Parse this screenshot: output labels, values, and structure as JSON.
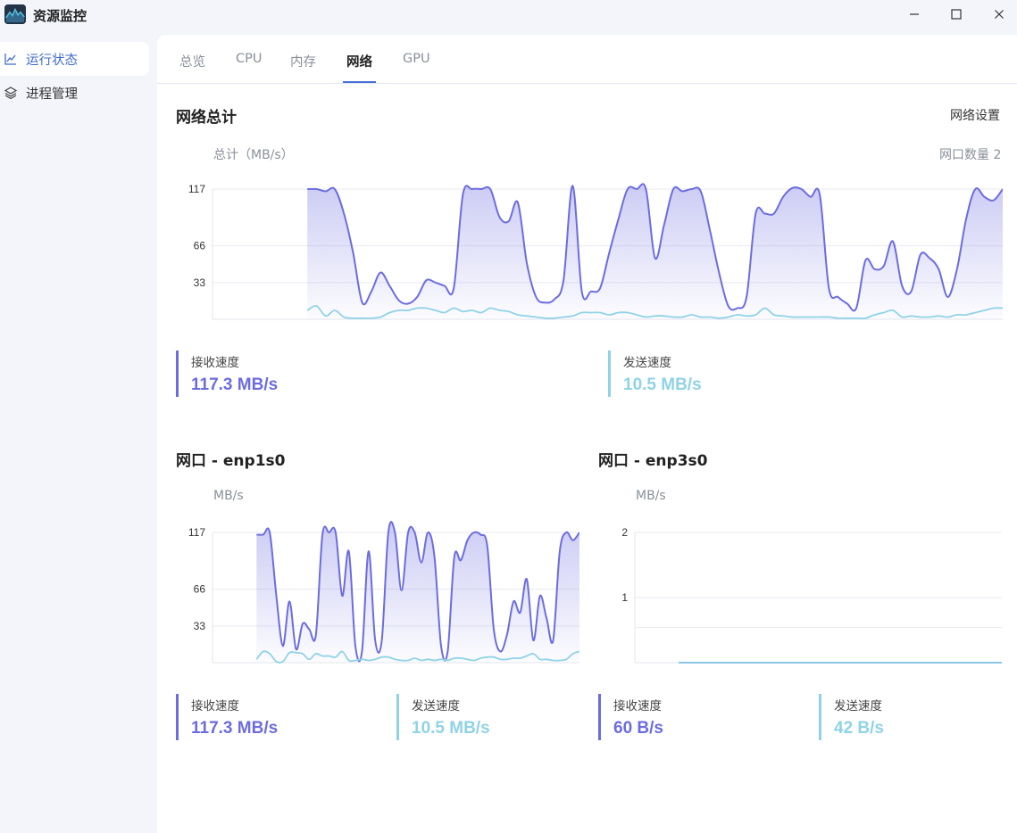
{
  "app": {
    "title": "资源监控"
  },
  "sidebar": {
    "items": [
      {
        "label": "运行状态",
        "icon": "chart-line-icon",
        "active": true
      },
      {
        "label": "进程管理",
        "icon": "layers-icon",
        "active": false
      }
    ]
  },
  "tabs": [
    {
      "label": "总览"
    },
    {
      "label": "CPU"
    },
    {
      "label": "内存"
    },
    {
      "label": "网络",
      "active": true
    },
    {
      "label": "GPU"
    }
  ],
  "colors": {
    "receive": "#6c6ce0",
    "send": "#8fd3e6",
    "accent": "#4a6fd6"
  },
  "total": {
    "title": "网络总计",
    "settings_label": "网络设置",
    "unit_label": "总计（MB/s）",
    "iface_count": "网口数量 2",
    "recv_label": "接收速度",
    "recv_value": "117.3 MB/s",
    "send_label": "发送速度",
    "send_value": "10.5 MB/s"
  },
  "ifaces": [
    {
      "title": "网口 - enp1s0",
      "unit_label": "MB/s",
      "recv_label": "接收速度",
      "recv_value": "117.3 MB/s",
      "send_label": "发送速度",
      "send_value": "10.5 MB/s"
    },
    {
      "title": "网口 - enp3s0",
      "unit_label": "MB/s",
      "recv_label": "接收速度",
      "recv_value": "60 B/s",
      "send_label": "发送速度",
      "send_value": "42 B/s"
    }
  ],
  "chart_data": [
    {
      "type": "area",
      "yticks": [
        "117",
        "66",
        "33"
      ],
      "ytick_values": [
        117,
        66,
        33
      ],
      "ylim": [
        0,
        117
      ],
      "grid": true,
      "series": [
        {
          "values": [
            117,
            117,
            115,
            117,
            95,
            60,
            15,
            25,
            42,
            30,
            17,
            14,
            20,
            35,
            33,
            30,
            28,
            112,
            117,
            117,
            117,
            92,
            88,
            105,
            50,
            20,
            15,
            18,
            35,
            120,
            25,
            25,
            28,
            60,
            90,
            117,
            117,
            117,
            55,
            85,
            117,
            115,
            117,
            115,
            80,
            42,
            12,
            10,
            20,
            95,
            95,
            95,
            110,
            118,
            117,
            110,
            112,
            28,
            20,
            14,
            10,
            53,
            45,
            48,
            70,
            30,
            25,
            58,
            55,
            45,
            20,
            45,
            90,
            117,
            110,
            107,
            117
          ]
        },
        {
          "values": [
            8,
            12,
            3,
            8,
            2,
            1,
            1,
            1,
            2,
            6,
            8,
            8,
            10,
            10,
            8,
            6,
            10,
            7,
            8,
            6,
            10,
            8,
            7,
            4,
            3,
            2,
            1,
            1,
            2,
            3,
            6,
            6,
            6,
            4,
            6,
            6,
            4,
            2,
            3,
            3,
            2,
            2,
            4,
            2,
            2,
            1,
            2,
            4,
            3,
            4,
            10,
            4,
            3,
            2,
            2,
            2,
            2,
            2,
            1,
            1,
            1,
            1,
            4,
            6,
            8,
            2,
            3,
            2,
            2,
            3,
            2,
            4,
            4,
            6,
            8,
            10,
            10
          ]
        }
      ]
    },
    {
      "type": "area",
      "yticks": [
        "117",
        "66",
        "33"
      ],
      "ytick_values": [
        117,
        66,
        33
      ],
      "ylim": [
        0,
        117
      ],
      "grid": true,
      "series": [
        {
          "values": [
            115,
            115,
            117,
            60,
            15,
            55,
            12,
            35,
            30,
            25,
            115,
            117,
            117,
            60,
            100,
            15,
            10,
            100,
            20,
            20,
            117,
            117,
            65,
            117,
            117,
            90,
            117,
            95,
            15,
            10,
            95,
            92,
            110,
            117,
            115,
            105,
            30,
            10,
            25,
            55,
            45,
            75,
            20,
            60,
            40,
            20,
            100,
            117,
            110,
            117
          ]
        },
        {
          "values": [
            3,
            10,
            8,
            1,
            1,
            9,
            9,
            8,
            3,
            8,
            6,
            6,
            5,
            10,
            2,
            2,
            3,
            2,
            3,
            5,
            5,
            3,
            2,
            2,
            4,
            2,
            3,
            2,
            3,
            2,
            4,
            4,
            3,
            2,
            4,
            5,
            5,
            3,
            3,
            4,
            4,
            6,
            8,
            3,
            3,
            2,
            2,
            3,
            8,
            10
          ]
        }
      ]
    },
    {
      "type": "area",
      "yticks": [
        "2",
        "1"
      ],
      "ytick_values": [
        2,
        1
      ],
      "ylim": [
        0,
        2
      ],
      "grid": true,
      "series": [
        {
          "values": [
            3e-05,
            6e-05,
            4e-05,
            5e-05,
            3e-05,
            6e-05,
            4e-05,
            5e-05,
            3e-05,
            5e-05,
            4e-05,
            6e-05,
            3e-05,
            5e-05,
            6e-05,
            4e-05,
            5e-05,
            3e-05,
            6e-05,
            4e-05,
            5e-05,
            3e-05,
            6e-05,
            4e-05,
            5e-05
          ]
        },
        {
          "values": [
            2e-05,
            4e-05,
            3e-05,
            4e-05,
            2e-05,
            4e-05,
            3e-05,
            4e-05,
            2e-05,
            4e-05,
            3e-05,
            4e-05,
            2e-05,
            4e-05,
            4e-05,
            3e-05,
            4e-05,
            2e-05,
            4e-05,
            3e-05,
            4e-05,
            2e-05,
            4e-05,
            3e-05,
            4e-05
          ]
        }
      ]
    }
  ]
}
